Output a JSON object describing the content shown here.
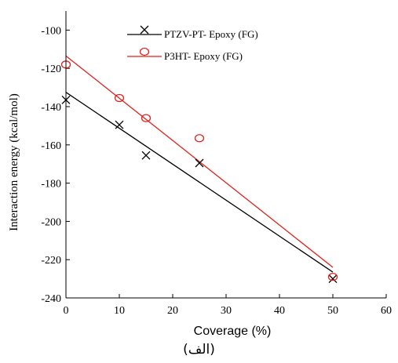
{
  "chart_data": {
    "type": "scatter",
    "xlabel": "Coverage (%)",
    "ylabel": "Interaction energy (kcal/mol)",
    "xlim": [
      0,
      60
    ],
    "ylim": [
      -240,
      -90
    ],
    "xticks": [
      0,
      10,
      20,
      30,
      40,
      50,
      60
    ],
    "yticks": [
      -240,
      -220,
      -200,
      -180,
      -160,
      -140,
      -120,
      -100
    ],
    "grid": false,
    "legend_position": "top-center",
    "series": [
      {
        "name": "PTZV-PT- Epoxy (FG)",
        "marker": "x",
        "color": "#000000",
        "x": [
          0,
          10,
          15,
          25,
          50
        ],
        "y": [
          -136.5,
          -149.5,
          -165.5,
          -169.5,
          -230
        ],
        "fit": {
          "x": [
            0,
            50
          ],
          "y": [
            -132.5,
            -226.5
          ]
        }
      },
      {
        "name": "P3HT- Epoxy (FG)",
        "marker": "o",
        "color": "#e0201b",
        "x": [
          0,
          10,
          15,
          25,
          50
        ],
        "y": [
          -118,
          -135.5,
          -146,
          -156.5,
          -229
        ],
        "fit": {
          "x": [
            0,
            50
          ],
          "y": [
            -113.5,
            -224
          ]
        }
      }
    ]
  },
  "panel_label": "(الف)"
}
